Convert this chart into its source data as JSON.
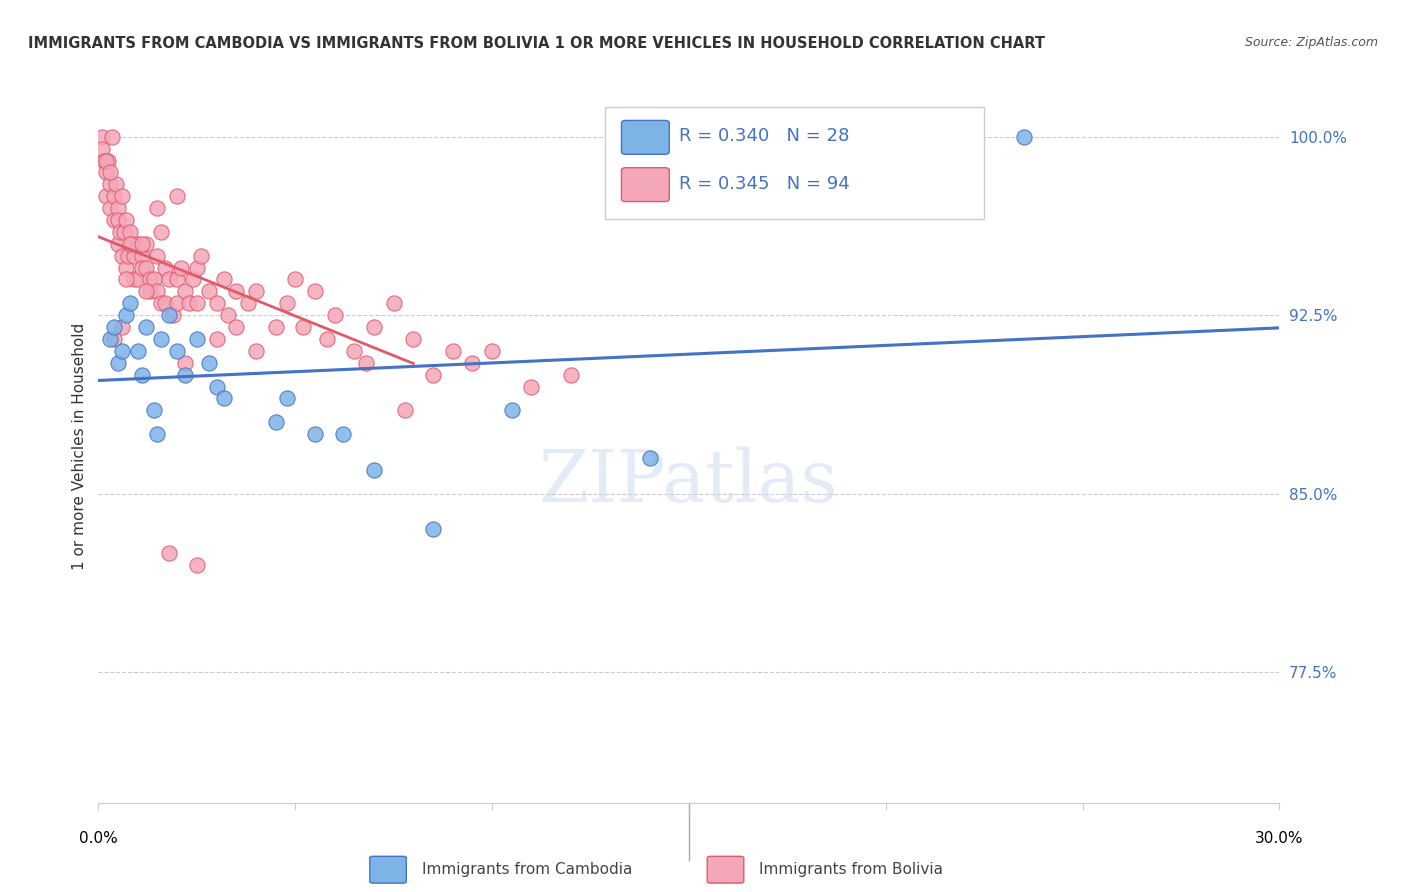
{
  "title": "IMMIGRANTS FROM CAMBODIA VS IMMIGRANTS FROM BOLIVIA 1 OR MORE VEHICLES IN HOUSEHOLD CORRELATION CHART",
  "source": "Source: ZipAtlas.com",
  "ylabel": "1 or more Vehicles in Household",
  "yticks": [
    77.5,
    85.0,
    92.5,
    100.0
  ],
  "ytick_labels": [
    "77.5%",
    "85.0%",
    "92.5%",
    "100.0%"
  ],
  "xmin": 0.0,
  "xmax": 30.0,
  "ymin": 72.0,
  "ymax": 102.0,
  "color_cambodia": "#7eb3e8",
  "color_bolivia": "#f4a7b9",
  "color_trendline_cambodia": "#4472c4",
  "color_trendline_bolivia": "#e05a6a",
  "watermark": "ZIPatlas",
  "cambodia_x": [
    0.3,
    0.4,
    0.5,
    0.6,
    0.7,
    0.8,
    1.0,
    1.1,
    1.2,
    1.4,
    1.5,
    1.6,
    1.8,
    2.0,
    2.2,
    2.5,
    2.8,
    3.0,
    3.2,
    4.5,
    4.8,
    5.5,
    6.2,
    7.0,
    8.5,
    10.5,
    14.0,
    23.5
  ],
  "cambodia_y": [
    91.5,
    92.0,
    90.5,
    91.0,
    92.5,
    93.0,
    91.0,
    90.0,
    92.0,
    88.5,
    87.5,
    91.5,
    92.5,
    91.0,
    90.0,
    91.5,
    90.5,
    89.5,
    89.0,
    88.0,
    89.0,
    87.5,
    87.5,
    86.0,
    83.5,
    88.5,
    86.5,
    100.0
  ],
  "bolivia_x": [
    0.1,
    0.1,
    0.15,
    0.2,
    0.2,
    0.25,
    0.3,
    0.3,
    0.35,
    0.4,
    0.4,
    0.45,
    0.5,
    0.5,
    0.5,
    0.55,
    0.6,
    0.6,
    0.65,
    0.7,
    0.7,
    0.75,
    0.8,
    0.85,
    0.9,
    0.9,
    1.0,
    1.0,
    1.1,
    1.1,
    1.2,
    1.2,
    1.3,
    1.3,
    1.4,
    1.5,
    1.5,
    1.6,
    1.7,
    1.7,
    1.8,
    1.9,
    2.0,
    2.0,
    2.1,
    2.2,
    2.3,
    2.4,
    2.5,
    2.5,
    2.6,
    2.8,
    3.0,
    3.2,
    3.3,
    3.5,
    3.5,
    3.8,
    4.0,
    4.5,
    4.8,
    5.0,
    5.5,
    5.8,
    6.0,
    6.5,
    7.0,
    7.5,
    8.0,
    8.5,
    9.0,
    9.5,
    10.0,
    11.0,
    12.0,
    2.2,
    0.2,
    3.0,
    4.0,
    5.2,
    6.8,
    7.8,
    2.5,
    1.8,
    1.5,
    1.2,
    0.8,
    0.6,
    0.4,
    0.3,
    2.0,
    1.6,
    1.1,
    0.7
  ],
  "bolivia_y": [
    100.0,
    99.5,
    99.0,
    98.5,
    97.5,
    99.0,
    98.0,
    97.0,
    100.0,
    97.5,
    96.5,
    98.0,
    97.0,
    96.5,
    95.5,
    96.0,
    97.5,
    95.0,
    96.0,
    94.5,
    96.5,
    95.0,
    96.0,
    95.5,
    95.0,
    94.0,
    95.5,
    94.0,
    95.0,
    94.5,
    95.5,
    94.5,
    94.0,
    93.5,
    94.0,
    95.0,
    93.5,
    93.0,
    94.5,
    93.0,
    94.0,
    92.5,
    94.0,
    93.0,
    94.5,
    93.5,
    93.0,
    94.0,
    94.5,
    93.0,
    95.0,
    93.5,
    93.0,
    94.0,
    92.5,
    93.5,
    92.0,
    93.0,
    93.5,
    92.0,
    93.0,
    94.0,
    93.5,
    91.5,
    92.5,
    91.0,
    92.0,
    93.0,
    91.5,
    90.0,
    91.0,
    90.5,
    91.0,
    89.5,
    90.0,
    90.5,
    99.0,
    91.5,
    91.0,
    92.0,
    90.5,
    88.5,
    82.0,
    82.5,
    97.0,
    93.5,
    95.5,
    92.0,
    91.5,
    98.5,
    97.5,
    96.0,
    95.5,
    94.0
  ]
}
